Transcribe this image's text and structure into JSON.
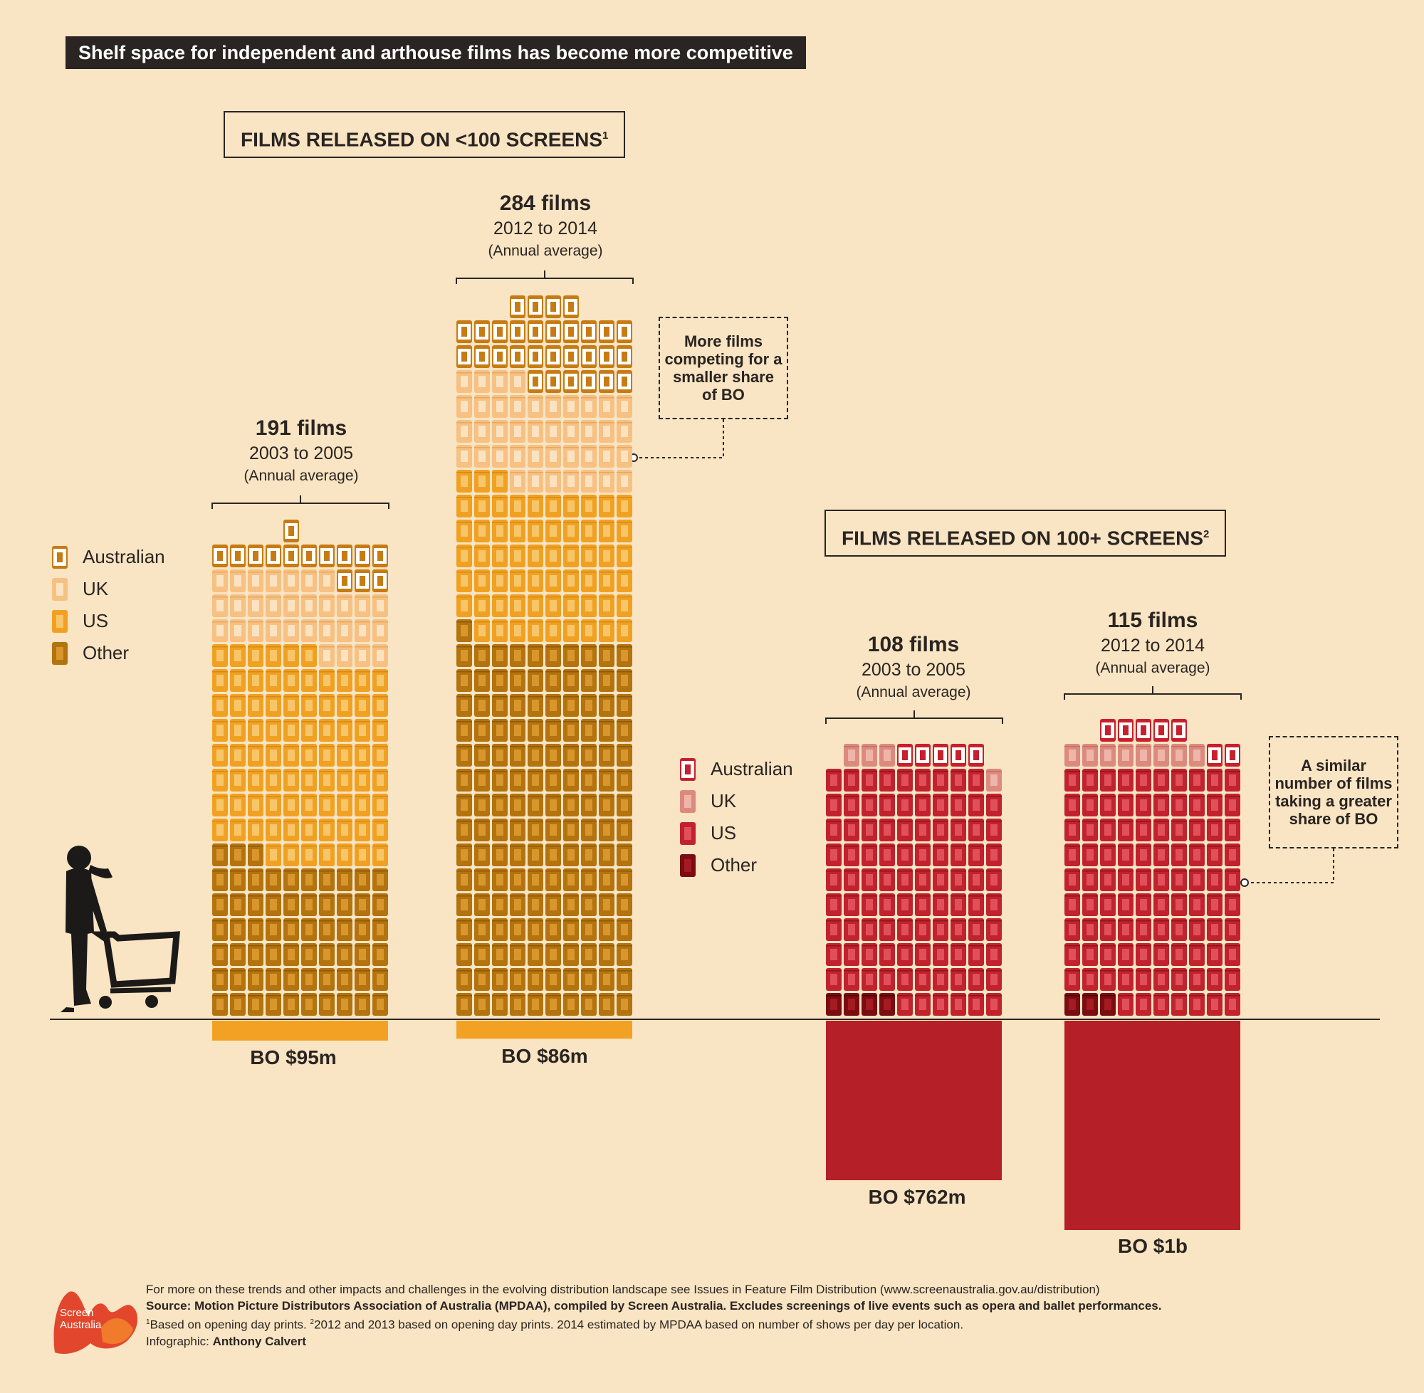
{
  "title": "Shelf space for independent and arthouse films has become more competitive",
  "colors": {
    "background": "#f9e4c3",
    "small_australian": "#c77b13",
    "small_uk": "#f6c182",
    "small_us": "#f1a122",
    "small_other": "#b3730e",
    "small_bo_bar": "#f2a124",
    "large_australian": "#c91f2c",
    "large_uk": "#dc8a7f",
    "large_us": "#c1222e",
    "large_other": "#7a0d12",
    "large_bo_bar": "#b41f28"
  },
  "legend": {
    "australian": "Australian",
    "uk": "UK",
    "us": "US",
    "other": "Other"
  },
  "sections": {
    "small": {
      "title": "FILMS RELEASED ON <100 SCREENS",
      "footnote": "1"
    },
    "large": {
      "title": "FILMS RELEASED ON 100+ SCREENS",
      "footnote": "2"
    }
  },
  "callouts": {
    "small": "More films competing for a smaller share of BO",
    "large": "A similar number of films taking a greater share of BO"
  },
  "chart_data": [
    {
      "type": "bar",
      "title": "FILMS RELEASED ON <100 SCREENS",
      "categories": [
        "2003 to 2005",
        "2012 to 2014"
      ],
      "annotations": [
        "(Annual average)",
        "(Annual average)"
      ],
      "series": [
        {
          "name": "Australian",
          "values": [
            14,
            30
          ]
        },
        {
          "name": "UK",
          "values": [
            31,
            41
          ]
        },
        {
          "name": "US",
          "values": [
            83,
            62
          ]
        },
        {
          "name": "Other",
          "values": [
            63,
            151
          ]
        }
      ],
      "totals": [
        191,
        284
      ],
      "total_labels": [
        "191 films",
        "284 films"
      ],
      "box_office": [
        95,
        86
      ],
      "box_office_labels": [
        "BO $95m",
        "BO $86m"
      ],
      "box_office_unit": "$m"
    },
    {
      "type": "bar",
      "title": "FILMS RELEASED ON 100+ SCREENS",
      "categories": [
        "2003 to 2005",
        "2012 to 2014"
      ],
      "annotations": [
        "(Annual average)",
        "(Annual average)"
      ],
      "series": [
        {
          "name": "Australian",
          "values": [
            5,
            7
          ]
        },
        {
          "name": "UK",
          "values": [
            4,
            8
          ]
        },
        {
          "name": "US",
          "values": [
            95,
            97
          ]
        },
        {
          "name": "Other",
          "values": [
            4,
            3
          ]
        }
      ],
      "totals": [
        108,
        115
      ],
      "total_labels": [
        "108 films",
        "115 films"
      ],
      "box_office": [
        762,
        1000
      ],
      "box_office_labels": [
        "BO $762m",
        "BO $1b"
      ],
      "box_office_unit": "$m"
    }
  ],
  "footer": {
    "line1": "For more on these trends and other impacts and challenges in the evolving distribution landscape see Issues in Feature Film Distribution (www.screenaustralia.gov.au/distribution)",
    "source": "Source: Motion Picture Distributors Association of Australia (MPDAA), compiled by Screen Australia. Excludes screenings of live events such as opera and ballet performances.",
    "note1_mark": "1",
    "note1": "Based on opening day prints.",
    "note2_mark": "2",
    "note2": "2012 and 2013 based on opening day prints. 2014 estimated by MPDAA based on number of shows per day per location.",
    "credit_prefix": "Infographic:",
    "credit_name": "Anthony Calvert"
  },
  "logo": {
    "line1": "Screen",
    "line2": "Australia"
  }
}
